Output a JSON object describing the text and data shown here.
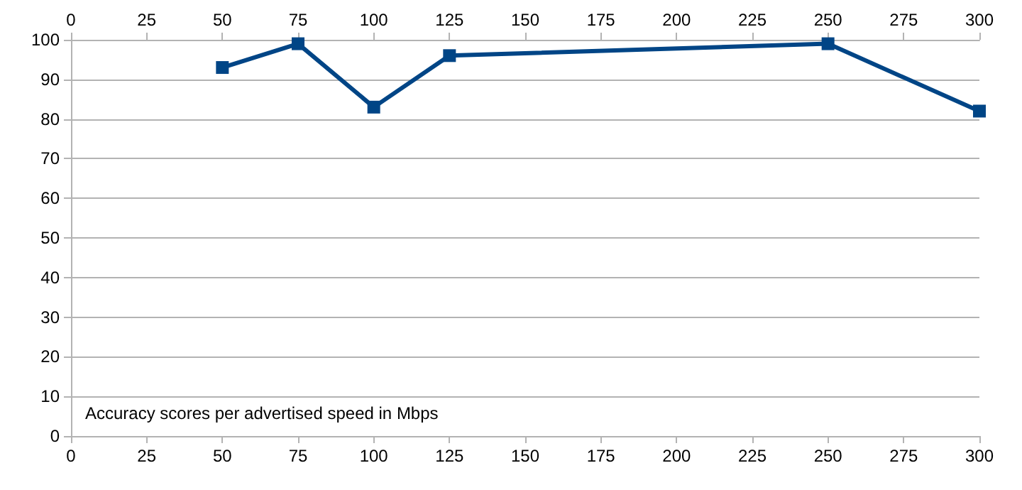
{
  "chart_data": {
    "type": "line",
    "x": [
      50,
      75,
      100,
      125,
      250,
      300
    ],
    "series": [
      {
        "color": "#004586",
        "values": [
          93,
          99,
          83,
          96,
          99,
          82
        ]
      }
    ],
    "xlim": [
      0,
      300
    ],
    "xticks": [
      0,
      25,
      50,
      75,
      100,
      125,
      150,
      175,
      200,
      225,
      250,
      275,
      300
    ],
    "x2lim": [
      0,
      300
    ],
    "x2ticks": [
      0,
      25,
      50,
      75,
      100,
      125,
      150,
      175,
      200,
      225,
      250,
      275,
      300
    ],
    "ylim": [
      0,
      100
    ],
    "yticks": [
      0,
      10,
      20,
      30,
      40,
      50,
      60,
      70,
      80,
      90,
      100
    ],
    "grid": "y",
    "marker": "square",
    "line_style": "solid",
    "annotations": [
      "Accuracy scores per advertised speed in Mbps"
    ]
  }
}
